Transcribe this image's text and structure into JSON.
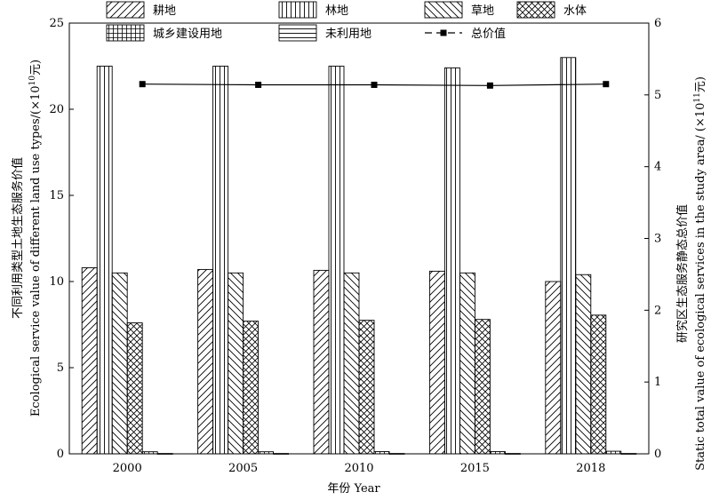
{
  "chart_data": {
    "type": "bar",
    "categories": [
      "2000",
      "2005",
      "2010",
      "2015",
      "2018"
    ],
    "series": [
      {
        "name": "耕地",
        "values": [
          10.8,
          10.7,
          10.65,
          10.6,
          10.0
        ],
        "pattern": "diag-right"
      },
      {
        "name": "林地",
        "values": [
          22.5,
          22.5,
          22.5,
          22.4,
          23.0
        ],
        "pattern": "vertical"
      },
      {
        "name": "草地",
        "values": [
          10.5,
          10.5,
          10.5,
          10.5,
          10.4
        ],
        "pattern": "diag-left"
      },
      {
        "name": "水体",
        "values": [
          7.6,
          7.7,
          7.75,
          7.8,
          8.05
        ],
        "pattern": "cross"
      },
      {
        "name": "城乡建设用地",
        "values": [
          0.12,
          0.12,
          0.13,
          0.13,
          0.15
        ],
        "pattern": "grid"
      },
      {
        "name": "未利用地",
        "values": [
          0.02,
          0.02,
          0.02,
          0.02,
          0.02
        ],
        "pattern": "horizontal"
      }
    ],
    "line_series": {
      "name": "总价值",
      "values": [
        5.15,
        5.14,
        5.14,
        5.13,
        5.15
      ],
      "axis": "right"
    },
    "xlabel": "年份 Year",
    "ylabel_left_cn": "不同利用类型土地生态服务价值",
    "ylabel_left_en": "Ecological service value of different land use types/(×10",
    "ylabel_left_exp": "10",
    "ylabel_left_unit": "元)",
    "ylabel_right_cn": "研究区生态服务静态总价值",
    "ylabel_right_en": "Static total value of ecological services in the study area/ (×10",
    "ylabel_right_exp": "11",
    "ylabel_right_unit": "元)",
    "ylim_left": [
      0,
      25
    ],
    "yticks_left": [
      "0",
      "5",
      "10",
      "15",
      "20",
      "25"
    ],
    "ylim_right": [
      0,
      6
    ],
    "yticks_right": [
      "0",
      "1",
      "2",
      "3",
      "4",
      "5",
      "6"
    ],
    "legend_placement": "top",
    "grid": false
  }
}
